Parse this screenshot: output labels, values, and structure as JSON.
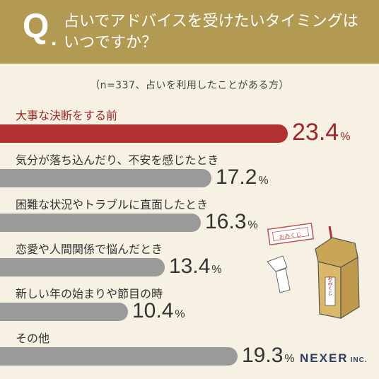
{
  "header": {
    "q_mark": "Q",
    "q_dot": ".",
    "question": "占いでアドバイスを受けたいタイミングはいつですか？"
  },
  "subtitle": "（n=337、占いを利用したことがある方）",
  "chart_data": {
    "type": "bar",
    "orientation": "horizontal",
    "unit": "%",
    "categories": [
      "大事な決断をする前",
      "気分が落ち込んだり、不安を感じたとき",
      "困難な状況やトラブルに直面したとき",
      "恋愛や人間関係で悩んだとき",
      "新しい年の始まりや節目の時",
      "その他"
    ],
    "values": [
      23.4,
      17.2,
      16.3,
      13.4,
      10.4,
      19.3
    ],
    "highlight_index": 0,
    "colors": {
      "highlight": "#b33030",
      "default": "#9a9a9a"
    }
  },
  "illustration": {
    "box_text": "おみくじ",
    "slip_text": "おみくじ"
  },
  "logo": {
    "name": "NEXER",
    "suffix": "INC."
  },
  "colors": {
    "header": "#b39a52",
    "background": "#f6f1e3",
    "logo": "#2c3e66"
  }
}
